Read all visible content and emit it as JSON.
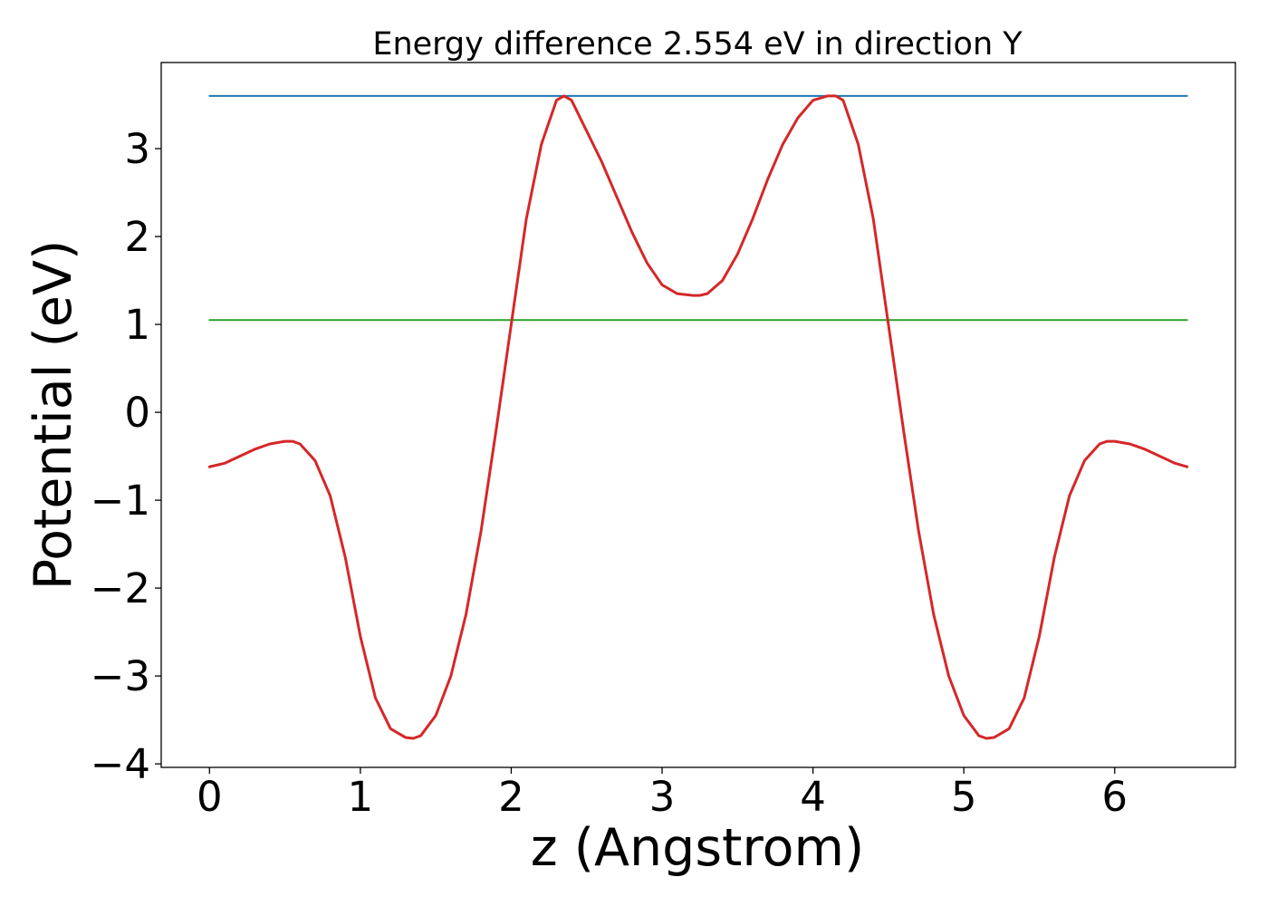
{
  "chart_data": {
    "type": "line",
    "title": "Energy difference 2.554 eV in direction Y",
    "xlabel": "z (Angstrom)",
    "ylabel": "Potential (eV)",
    "xlim": [
      -0.32,
      6.8
    ],
    "ylim": [
      -4.04,
      3.98
    ],
    "grid": false,
    "x_ticks": [
      0,
      1,
      2,
      3,
      4,
      5,
      6
    ],
    "y_ticks": [
      -4,
      -3,
      -2,
      -1,
      0,
      1,
      2,
      3
    ],
    "series": [
      {
        "color": "#1f77b4",
        "x": [
          0,
          6.48
        ],
        "y": [
          3.6,
          3.6
        ]
      },
      {
        "color": "#2ca02c",
        "x": [
          0,
          6.48
        ],
        "y": [
          1.05,
          1.05
        ]
      },
      {
        "color": "#d62728",
        "x": [
          0.0,
          0.1,
          0.2,
          0.3,
          0.4,
          0.5,
          0.55,
          0.6,
          0.7,
          0.8,
          0.9,
          1.0,
          1.1,
          1.2,
          1.3,
          1.35,
          1.4,
          1.5,
          1.6,
          1.7,
          1.8,
          1.9,
          2.0,
          2.1,
          2.2,
          2.3,
          2.35,
          2.4,
          2.5,
          2.6,
          2.7,
          2.8,
          2.9,
          3.0,
          3.1,
          3.2,
          3.25,
          3.3,
          3.4,
          3.5,
          3.6,
          3.7,
          3.8,
          3.9,
          4.0,
          4.1,
          4.15,
          4.2,
          4.3,
          4.4,
          4.5,
          4.6,
          4.7,
          4.8,
          4.9,
          5.0,
          5.1,
          5.15,
          5.2,
          5.3,
          5.4,
          5.5,
          5.6,
          5.7,
          5.8,
          5.9,
          5.95,
          6.0,
          6.1,
          6.2,
          6.3,
          6.4,
          6.48
        ],
        "y": [
          -0.62,
          -0.58,
          -0.5,
          -0.42,
          -0.36,
          -0.33,
          -0.33,
          -0.36,
          -0.55,
          -0.95,
          -1.65,
          -2.55,
          -3.25,
          -3.6,
          -3.7,
          -3.71,
          -3.68,
          -3.45,
          -3.0,
          -2.3,
          -1.35,
          -0.2,
          1.0,
          2.2,
          3.05,
          3.55,
          3.6,
          3.55,
          3.2,
          2.85,
          2.45,
          2.05,
          1.7,
          1.45,
          1.35,
          1.33,
          1.33,
          1.35,
          1.5,
          1.8,
          2.2,
          2.65,
          3.05,
          3.35,
          3.55,
          3.6,
          3.6,
          3.55,
          3.05,
          2.2,
          1.0,
          -0.2,
          -1.35,
          -2.3,
          -3.0,
          -3.45,
          -3.68,
          -3.71,
          -3.7,
          -3.6,
          -3.25,
          -2.55,
          -1.65,
          -0.95,
          -0.55,
          -0.36,
          -0.33,
          -0.33,
          -0.36,
          -0.42,
          -0.5,
          -0.58,
          -0.62
        ]
      }
    ]
  }
}
